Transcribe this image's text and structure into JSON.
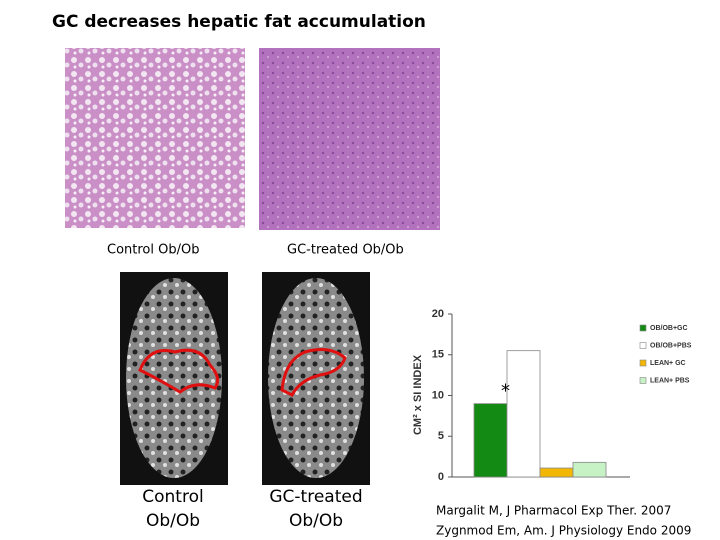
{
  "title": "GC decreases hepatic fat accumulation",
  "histology": {
    "captions": [
      "Control Ob/Ob",
      "GC-treated Ob/Ob"
    ]
  },
  "mri": {
    "captions": [
      [
        "Control",
        "Ob/Ob"
      ],
      [
        "GC-treated",
        "Ob/Ob"
      ]
    ]
  },
  "citation": [
    "Margalit M, J Pharmacol Exp Ther. 2007",
    "Zygnmod Em, Am. J Physiology Endo 2009"
  ],
  "chart_data": {
    "type": "bar",
    "y_label": "CM² x SI INDEX",
    "categories": [
      null
    ],
    "series": [
      {
        "name": "OB/OB+GC",
        "color": "#138a13",
        "values": [
          9
        ]
      },
      {
        "name": "OB/OB+PBS",
        "color": "#ffffff",
        "values": [
          15.5
        ]
      },
      {
        "name": "LEAN+ GC",
        "color": "#f2b705",
        "values": [
          1.1
        ]
      },
      {
        "name": "LEAN+ PBS",
        "color": "#c6f2c6",
        "values": [
          1.8
        ]
      }
    ],
    "annotation": "*",
    "ylim": [
      0,
      20
    ],
    "yticks": [
      0,
      5,
      10,
      15,
      20
    ],
    "grid": false,
    "legend": "right"
  }
}
